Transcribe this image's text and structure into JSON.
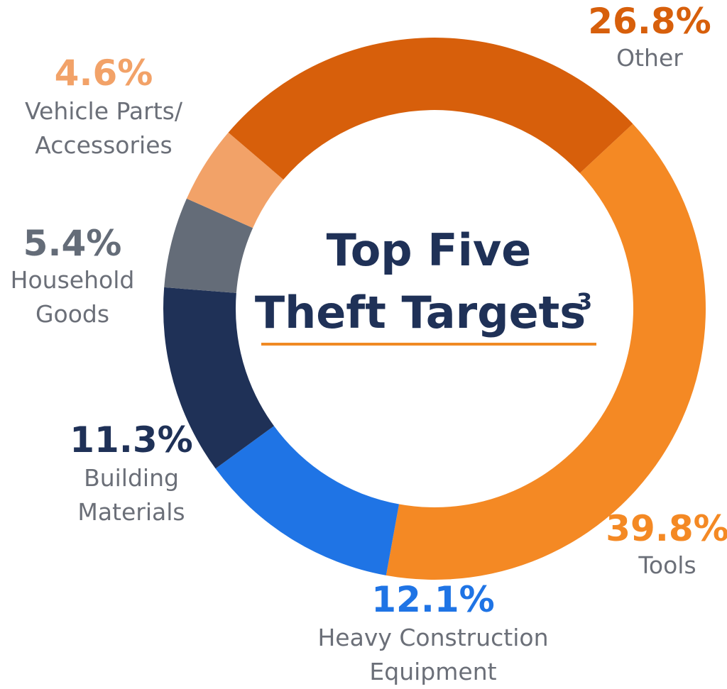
{
  "chart_data": {
    "type": "pie",
    "donut": true,
    "title_lines": [
      "Top Five",
      "Theft Targets"
    ],
    "title_superscript": "3",
    "title_underline_color": "#f08a24",
    "slices": [
      {
        "label_lines": [
          "Tools"
        ],
        "value": 39.8,
        "value_label": "39.8%",
        "color": "#f48924",
        "label_color": "#f48924"
      },
      {
        "label_lines": [
          "Heavy Construction",
          "Equipment"
        ],
        "value": 12.1,
        "value_label": "12.1%",
        "color": "#1f74e5",
        "label_color": "#1f74e5"
      },
      {
        "label_lines": [
          "Building",
          "Materials"
        ],
        "value": 11.3,
        "value_label": "11.3%",
        "color": "#1f3157",
        "label_color": "#1f3157"
      },
      {
        "label_lines": [
          "Household",
          "Goods"
        ],
        "value": 5.4,
        "value_label": "5.4%",
        "color": "#646c78",
        "label_color": "#646c78"
      },
      {
        "label_lines": [
          "Vehicle Parts/",
          "Accessories"
        ],
        "value": 4.6,
        "value_label": "4.6%",
        "color": "#f2a268",
        "label_color": "#f2a268"
      },
      {
        "label_lines": [
          "Other"
        ],
        "value": 26.8,
        "value_label": "26.8%",
        "color": "#d75f0b",
        "label_color": "#d75f0b"
      }
    ]
  }
}
